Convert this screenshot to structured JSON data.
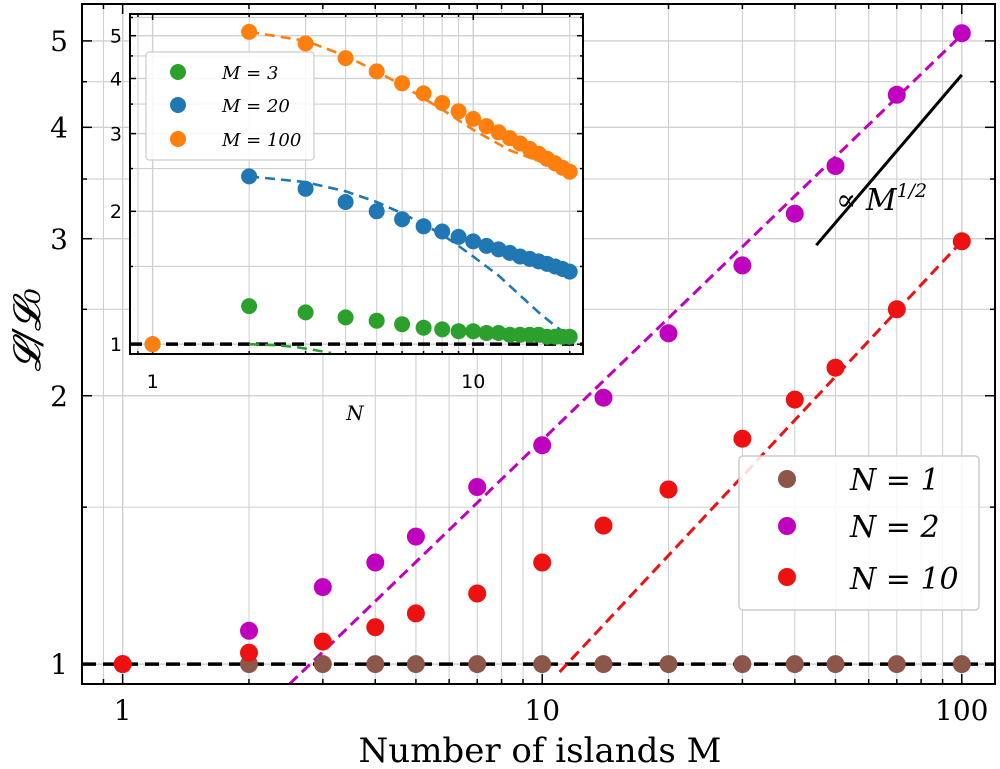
{
  "chart_data": [
    {
      "type": "scatter",
      "xlabel": "Number of islands M",
      "ylabel": "𝓛/𝓛₀",
      "xscale": "log",
      "yscale": "log",
      "xlim": [
        0.8,
        120
      ],
      "ylim": [
        0.95,
        5.5
      ],
      "xticks": [
        1,
        10,
        100
      ],
      "xtick_labels": [
        "1",
        "10",
        "100"
      ],
      "yticks": [
        1,
        2,
        3,
        4,
        5
      ],
      "ytick_labels": [
        "1",
        "2",
        "3",
        "4",
        "5"
      ],
      "grid": true,
      "legend_position": "lower-right",
      "series": [
        {
          "name": "N = 1",
          "color": "#8c564b",
          "x": [
            1,
            2,
            3,
            4,
            5,
            7,
            10,
            14,
            20,
            30,
            40,
            50,
            70,
            100
          ],
          "y": [
            1.0,
            1.0,
            1.0,
            1.0,
            1.0,
            1.0,
            1.0,
            1.0,
            1.0,
            1.0,
            1.0,
            1.0,
            1.0,
            1.0
          ]
        },
        {
          "name": "N = 2",
          "color": "#bf00bf",
          "x": [
            2,
            3,
            4,
            5,
            7,
            10,
            14,
            20,
            30,
            40,
            50,
            70,
            100
          ],
          "y": [
            1.09,
            1.22,
            1.3,
            1.39,
            1.58,
            1.76,
            1.99,
            2.35,
            2.8,
            3.2,
            3.62,
            4.35,
            5.1
          ]
        },
        {
          "name": "N = 10",
          "color": "#ee1111",
          "x": [
            1,
            2,
            3,
            4,
            5,
            7,
            10,
            14,
            20,
            30,
            40,
            50,
            70,
            100
          ],
          "y": [
            1.0,
            1.03,
            1.06,
            1.1,
            1.14,
            1.2,
            1.3,
            1.43,
            1.57,
            1.79,
            1.98,
            2.15,
            2.5,
            2.98
          ]
        }
      ],
      "fit_lines": [
        {
          "color": "#bf00bf",
          "x": [
            2.5,
            100
          ],
          "y": [
            0.95,
            5.08
          ]
        },
        {
          "color": "#ee1111",
          "x": [
            11,
            100
          ],
          "y": [
            0.98,
            2.98
          ]
        }
      ],
      "reference_line": {
        "y": 1.0,
        "color": "#000000",
        "style": "dashed"
      },
      "annotation": {
        "text": "∝ M",
        "superscript": "1/2",
        "x": [
          45,
          100
        ],
        "y": [
          2.95,
          4.58
        ]
      }
    },
    {
      "type": "scatter",
      "xlabel": "N",
      "ylabel": "",
      "xscale": "log",
      "yscale": "log",
      "xlim": [
        0.85,
        22
      ],
      "ylim": [
        0.95,
        5.6
      ],
      "xticks": [
        1,
        10
      ],
      "xtick_labels": [
        "1",
        "10"
      ],
      "yticks": [
        1,
        2,
        3,
        4,
        5
      ],
      "ytick_labels": [
        "1",
        "2",
        "3",
        "4",
        "5"
      ],
      "grid": true,
      "legend_position": "upper-left",
      "series": [
        {
          "name": "M = 3",
          "color": "#2ca02c",
          "x": [
            1,
            2,
            3,
            4,
            5,
            6,
            7,
            8,
            9,
            10,
            11,
            12,
            13,
            14,
            15,
            16,
            17,
            18,
            19,
            20
          ],
          "y": [
            1.0,
            1.22,
            1.18,
            1.15,
            1.13,
            1.11,
            1.09,
            1.08,
            1.07,
            1.07,
            1.06,
            1.06,
            1.05,
            1.05,
            1.05,
            1.05,
            1.04,
            1.04,
            1.04,
            1.04
          ]
        },
        {
          "name": "M = 20",
          "color": "#1f77b4",
          "x": [
            1,
            2,
            3,
            4,
            5,
            6,
            7,
            8,
            9,
            10,
            11,
            12,
            13,
            14,
            15,
            16,
            17,
            18,
            19,
            20
          ],
          "y": [
            1.0,
            2.4,
            2.25,
            2.1,
            2.0,
            1.92,
            1.85,
            1.8,
            1.75,
            1.71,
            1.67,
            1.64,
            1.61,
            1.58,
            1.56,
            1.54,
            1.52,
            1.5,
            1.48,
            1.46
          ]
        },
        {
          "name": "M = 100",
          "color": "#ff7f0e",
          "x": [
            1,
            2,
            3,
            4,
            5,
            6,
            7,
            8,
            9,
            10,
            11,
            12,
            13,
            14,
            15,
            16,
            17,
            18,
            19,
            20
          ],
          "y": [
            1.0,
            5.1,
            4.8,
            4.45,
            4.15,
            3.9,
            3.7,
            3.52,
            3.37,
            3.24,
            3.12,
            3.02,
            2.93,
            2.85,
            2.77,
            2.7,
            2.63,
            2.57,
            2.51,
            2.46
          ]
        }
      ],
      "fit_lines": [
        {
          "color": "#2ca02c",
          "x": [
            2,
            2.4,
            2.8,
            3.2,
            3.6
          ],
          "y": [
            1.0,
            0.995,
            0.985,
            0.97,
            0.955
          ]
        },
        {
          "color": "#1f77b4",
          "x": [
            2,
            3,
            4,
            5,
            6,
            7,
            8,
            9,
            10,
            12,
            14,
            16,
            18,
            20
          ],
          "y": [
            2.4,
            2.33,
            2.22,
            2.1,
            1.98,
            1.87,
            1.77,
            1.67,
            1.58,
            1.43,
            1.29,
            1.18,
            1.1,
            1.04
          ]
        },
        {
          "color": "#ff7f0e",
          "x": [
            2,
            3,
            4,
            5,
            6,
            8,
            10,
            13,
            16,
            20
          ],
          "y": [
            5.1,
            4.87,
            4.5,
            4.15,
            3.86,
            3.4,
            3.06,
            2.75,
            2.6,
            2.46
          ]
        }
      ],
      "reference_line": {
        "y": 1.0,
        "color": "#000000",
        "style": "dashed"
      }
    }
  ]
}
